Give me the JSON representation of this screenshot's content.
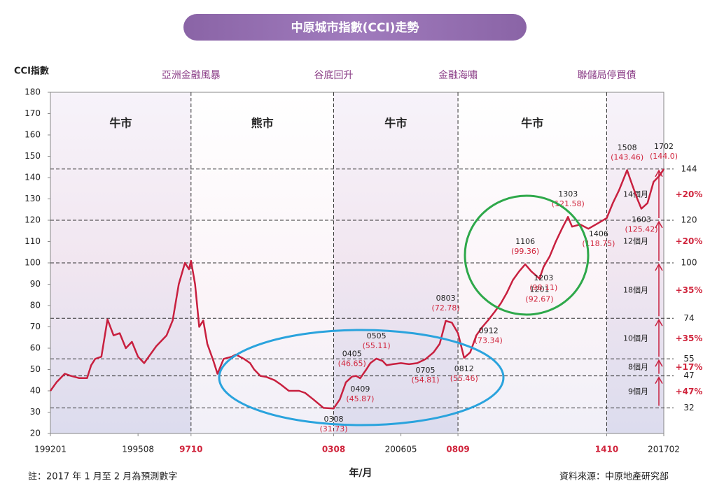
{
  "chart_data": {
    "type": "line",
    "title": "中原城市指數(CCI)走勢",
    "y_label": "CCI指數",
    "x_label": "年/月",
    "note": "註：2017 年 1 月至 2 月為預測數字",
    "source": "資料來源：中原地產研究部",
    "xlim": [
      "1992-01",
      "2017-02"
    ],
    "ylim": [
      20,
      180
    ],
    "yticks": [
      20,
      30,
      40,
      50,
      60,
      70,
      80,
      90,
      100,
      110,
      120,
      130,
      140,
      150,
      160,
      170,
      180
    ],
    "xticks": [
      {
        "value": "1992-01",
        "label": "199201"
      },
      {
        "value": "1995-08",
        "label": "199508"
      },
      {
        "value": "1997-10",
        "label": "9710"
      },
      {
        "value": "2003-08",
        "label": "0308"
      },
      {
        "value": "2006-05",
        "label": "200605"
      },
      {
        "value": "2008-09",
        "label": "0809"
      },
      {
        "value": "2014-10",
        "label": "1410"
      },
      {
        "value": "2017-02",
        "label": "201702"
      }
    ],
    "events": [
      {
        "x": "1997-10",
        "label": "亞洲金融風暴"
      },
      {
        "x": "2003-08",
        "label": "谷底回升"
      },
      {
        "x": "2008-09",
        "label": "金融海嘯"
      },
      {
        "x": "2014-10",
        "label": "聯儲局停買債"
      }
    ],
    "regions": [
      {
        "from": "1992-01",
        "to": "1997-10",
        "label": "牛市",
        "shade": true
      },
      {
        "from": "1997-10",
        "to": "2003-08",
        "label": "熊市",
        "shade": false
      },
      {
        "from": "2003-08",
        "to": "2008-09",
        "label": "牛市",
        "shade": true
      },
      {
        "from": "2008-09",
        "to": "2014-10",
        "label": "牛市",
        "shade": false
      },
      {
        "from": "2014-10",
        "to": "2017-02",
        "label": null,
        "shade": true
      }
    ],
    "ref_lines": [
      144,
      120,
      100,
      74,
      55,
      47,
      32
    ],
    "gains": [
      {
        "from": 32,
        "to": 47,
        "period": "9個月",
        "change": "+47%"
      },
      {
        "from": 47,
        "to": 55,
        "period": "8個月",
        "change": "+17%"
      },
      {
        "from": 55,
        "to": 74,
        "period": "10個月",
        "change": "+35%"
      },
      {
        "from": 74,
        "to": 100,
        "period": "18個月",
        "change": "+35%"
      },
      {
        "from": 100,
        "to": 120,
        "period": "12個月",
        "change": "+20%"
      },
      {
        "from": 120,
        "to": 144,
        "period": "14個月",
        "change": "+20%"
      }
    ],
    "series": [
      {
        "color": "#c8203f",
        "x": [
          "1992-01",
          "1992-04",
          "1992-08",
          "1992-11",
          "1993-03",
          "1993-07",
          "1993-09",
          "1993-11",
          "1994-02",
          "1994-05",
          "1994-08",
          "1994-11",
          "1995-02",
          "1995-05",
          "1995-08",
          "1995-11",
          "1996-02",
          "1996-05",
          "1996-10",
          "1997-01",
          "1997-04",
          "1997-07",
          "1997-09",
          "1997-10",
          "1997-12",
          "1998-02",
          "1998-04",
          "1998-06",
          "1998-09",
          "1998-11",
          "1999-02",
          "1999-06",
          "1999-08",
          "1999-12",
          "2000-03",
          "2000-05",
          "2000-08",
          "2000-11",
          "2001-03",
          "2001-06",
          "2001-10",
          "2002-03",
          "2002-06",
          "2002-10",
          "2003-03",
          "2003-08",
          "2003-11",
          "2004-02",
          "2004-05",
          "2004-07",
          "2004-09",
          "2004-12",
          "2005-02",
          "2005-05",
          "2005-08",
          "2005-10",
          "2006-01",
          "2006-05",
          "2006-09",
          "2007-01",
          "2007-05",
          "2007-09",
          "2007-12",
          "2008-03",
          "2008-06",
          "2008-09",
          "2008-12",
          "2009-03",
          "2009-06",
          "2009-09",
          "2009-12",
          "2010-03",
          "2010-06",
          "2010-09",
          "2010-12",
          "2011-03",
          "2011-06",
          "2011-09",
          "2012-01",
          "2012-03",
          "2012-06",
          "2012-09",
          "2012-12",
          "2013-03",
          "2013-05",
          "2013-09",
          "2014-01",
          "2014-06",
          "2014-10",
          "2015-01",
          "2015-04",
          "2015-08",
          "2015-10",
          "2016-01",
          "2016-03",
          "2016-06",
          "2016-09",
          "2016-12",
          "2017-02"
        ],
        "values": [
          40,
          44,
          48,
          47,
          46,
          46,
          52,
          55,
          56,
          73.5,
          66,
          67,
          60,
          63,
          56,
          53,
          57,
          61,
          66,
          73,
          90,
          100,
          97,
          101,
          90,
          70,
          73,
          62,
          54,
          48,
          55,
          56,
          57,
          55,
          53,
          50,
          47,
          46.5,
          45,
          43,
          40,
          40,
          39,
          36,
          32,
          31.73,
          36,
          44,
          46.65,
          47,
          45.87,
          50,
          53,
          55.11,
          54,
          52,
          52.5,
          53,
          52.5,
          53,
          54.81,
          58,
          62,
          72.78,
          72,
          67,
          55.46,
          58,
          66,
          70,
          73.34,
          77,
          81,
          86,
          92,
          96,
          99.36,
          96,
          92.67,
          98.11,
          103,
          110,
          116,
          121.58,
          117,
          118,
          116,
          118.75,
          121,
          128,
          134,
          143.46,
          138,
          130,
          125.42,
          128,
          138,
          141,
          144.0
        ],
        "point_labels": [
          null,
          null,
          null,
          null,
          null,
          null,
          null,
          null,
          null,
          null,
          null,
          null,
          null,
          null,
          null,
          null,
          null,
          null,
          null,
          null,
          null,
          null,
          null,
          null,
          null,
          null,
          null,
          null,
          null,
          null,
          null,
          null,
          null,
          null,
          null,
          null,
          null,
          null,
          null,
          null,
          null,
          null,
          null,
          null,
          null,
          "0308",
          null,
          null,
          "0405",
          null,
          "0409",
          null,
          null,
          "0505",
          null,
          null,
          null,
          null,
          null,
          null,
          "0705",
          null,
          null,
          "0803",
          null,
          null,
          "0812",
          null,
          null,
          null,
          "0912",
          null,
          null,
          null,
          null,
          null,
          "1106",
          null,
          "1201",
          "1203",
          null,
          null,
          null,
          "1303",
          null,
          null,
          null,
          "1406",
          null,
          null,
          null,
          "1508",
          null,
          null,
          "1603",
          null,
          null,
          null,
          "1702"
        ],
        "value_labels": [
          null,
          null,
          null,
          null,
          null,
          null,
          null,
          null,
          null,
          null,
          null,
          null,
          null,
          null,
          null,
          null,
          null,
          null,
          null,
          null,
          null,
          null,
          null,
          null,
          null,
          null,
          null,
          null,
          null,
          null,
          null,
          null,
          null,
          null,
          null,
          null,
          null,
          null,
          null,
          null,
          null,
          null,
          null,
          null,
          null,
          "(31.73)",
          null,
          null,
          "(46.65)",
          null,
          "(45.87)",
          null,
          null,
          "(55.11)",
          null,
          null,
          null,
          null,
          null,
          null,
          "(54.81)",
          null,
          null,
          "(72.78)",
          null,
          null,
          "(55.46)",
          null,
          null,
          null,
          "(73.34)",
          null,
          null,
          null,
          null,
          null,
          "(99.36)",
          null,
          "(92.67)",
          "(98.11)",
          null,
          null,
          null,
          "(121.58)",
          null,
          null,
          null,
          "(118.75)",
          null,
          null,
          null,
          "(143.46)",
          null,
          null,
          "(125.42)",
          null,
          null,
          null,
          "(144.0)"
        ]
      }
    ]
  }
}
